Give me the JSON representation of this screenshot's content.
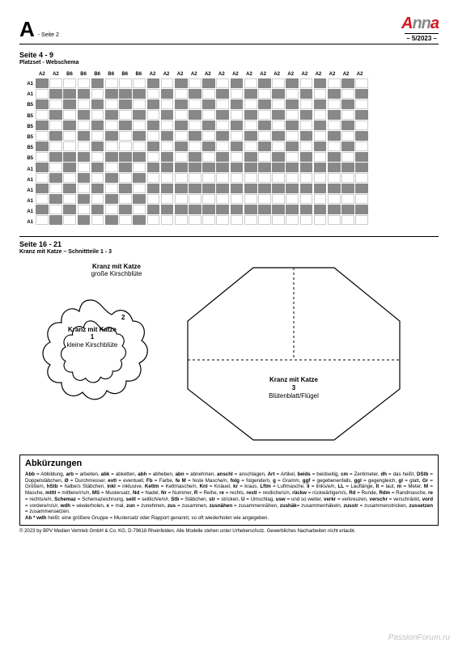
{
  "header": {
    "letter": "A",
    "seite": "- Seite 2",
    "logo_a": "A",
    "logo_nn": "nn",
    "logo_a2": "a",
    "issue": "– 5/2023 –"
  },
  "sec1": {
    "title": "Seite 4 - 9",
    "sub": "Platzset - Webschema"
  },
  "weave": {
    "cols": [
      "A2",
      "A2",
      "B6",
      "B6",
      "B6",
      "B6",
      "B6",
      "B6",
      "A2",
      "A2",
      "A2",
      "A2",
      "A2",
      "A2",
      "A2",
      "A2",
      "A2",
      "A2",
      "A2",
      "A2",
      "A2",
      "A2",
      "A2",
      "A2"
    ],
    "rows": [
      "A1",
      "A1",
      "B5",
      "B5",
      "B5",
      "B5",
      "B5",
      "B5",
      "A1",
      "A1",
      "A1",
      "A1",
      "A1",
      "A1"
    ],
    "grid": [
      "dwwwdwwwdwdwdwdwdwdwdwdw",
      "wdddwdddwdwdwdwdwdwdwdwd",
      "dwdwdwdwdwdwdwdwdwdwdwdw",
      "wdwdwdwdwdwdwdwdwdwdwdwd",
      "dwdwdwdwdwdwdwdwdwdwdwdw",
      "wdwdwdwdwdwdwdwdwdwdwdwd",
      "dwwwdwwwdwdwdwdwdwdwdwdw",
      "wdddwdddwdwdwdwdwdwdwdwd",
      "dwdwdwdwdddddddddddddddd",
      "wdwdwdwdwwwwwwwwwwwwwwww",
      "dwdwdwdwdddddddddddddddd",
      "wdwdwdwdwwwwwwwwwwwwwwww",
      "dwdwdwdwdddddddddddddddd",
      "wdwdwdwdwwwwwwwwwwwwwwww"
    ]
  },
  "sec2": {
    "title": "Seite 16 - 21",
    "sub": "Kranz mit Katze – Schnittteile 1 - 3"
  },
  "flower": {
    "outer_title": "Kranz mit Katze",
    "outer_sub": "große Kirschblüte",
    "outer_num": "2",
    "inner_title": "Kranz mit Katze",
    "inner_num": "1",
    "inner_sub": "kleine Kirschblüte"
  },
  "oct": {
    "title": "Kranz mit Katze",
    "num": "3",
    "sub": "Blütenblatt/Flügel"
  },
  "abk": {
    "title": "Abkürzungen",
    "body_parts": [
      {
        "b": "Abb",
        "t": " = Abbildung, "
      },
      {
        "b": "arb",
        "t": " = arbeiten, "
      },
      {
        "b": "abk",
        "t": " = abketten, "
      },
      {
        "b": "abh",
        "t": " = abheben, "
      },
      {
        "b": "abn",
        "t": " = abnehmen, "
      },
      {
        "b": "anschl",
        "t": " = anschlagen, "
      },
      {
        "b": "Art",
        "t": " = Artikel, "
      },
      {
        "b": "beids",
        "t": " = beidseitig, "
      },
      {
        "b": "cm",
        "t": " = Zentimeter, "
      },
      {
        "b": "dh",
        "t": " = das heißt, "
      },
      {
        "b": "DStb",
        "t": " = Doppelstäbchen, "
      },
      {
        "b": "Ø",
        "t": " = Durchmesser, "
      },
      {
        "b": "evtl",
        "t": " = eventuell, "
      },
      {
        "b": "Fb",
        "t": " = Farbe, "
      },
      {
        "b": "fe M",
        "t": " = feste Masche/n, "
      },
      {
        "b": "folg",
        "t": " = folgende/n, "
      },
      {
        "b": "g",
        "t": " = Gramm, "
      },
      {
        "b": "ggf",
        "t": " = gegebenenfalls, "
      },
      {
        "b": "ggl",
        "t": " = gegengleich, "
      },
      {
        "b": "gl",
        "t": " = glatt, "
      },
      {
        "b": "Gr",
        "t": " = Größe/n, "
      },
      {
        "b": "hStb",
        "t": " = halbe/s Stäbchen, "
      },
      {
        "b": "inkl",
        "t": " = inklusive, "
      },
      {
        "b": "Kettm",
        "t": " = Kettmasche/n, "
      },
      {
        "b": "Knl",
        "t": " = Knäuel, "
      },
      {
        "b": "kr",
        "t": " = kraus, "
      },
      {
        "b": "Lftm",
        "t": " = Luftmasche, "
      },
      {
        "b": "li",
        "t": " = links/e/n, "
      },
      {
        "b": "LL",
        "t": " = Lauflänge, "
      },
      {
        "b": "lt",
        "t": " = laut, "
      },
      {
        "b": "m",
        "t": " = Meter, "
      },
      {
        "b": "M",
        "t": " = Masche, "
      },
      {
        "b": "mittl",
        "t": " = mittlere/r/s/n, "
      },
      {
        "b": "MS",
        "t": " = Mustersatz, "
      },
      {
        "b": "Nd",
        "t": " = Nadel, "
      },
      {
        "b": "Nr",
        "t": " = Nummer, "
      },
      {
        "b": "R",
        "t": " = Reihe, "
      },
      {
        "b": "re",
        "t": " = rechts, "
      },
      {
        "b": "restl",
        "t": " = restliche/s/n, "
      },
      {
        "b": "rückw",
        "t": " = rückwärtige/n/s, "
      },
      {
        "b": "Rd",
        "t": " = Runde, "
      },
      {
        "b": "Rdm",
        "t": " = Randmasche, "
      },
      {
        "b": "re",
        "t": " = rechts/e/n, "
      },
      {
        "b": "Schemaz",
        "t": " = Schemazeichnung, "
      },
      {
        "b": "seitl",
        "t": " = seitlich/e/n/r, "
      },
      {
        "b": "Stb",
        "t": " = Stäbchen, "
      },
      {
        "b": "str",
        "t": " = stricken, "
      },
      {
        "b": "U",
        "t": " = Umschlag, "
      },
      {
        "b": "usw",
        "t": " = und so weiter, "
      },
      {
        "b": "verkr",
        "t": " = verkreuzen, "
      },
      {
        "b": "verschr",
        "t": " = verschränkt, "
      },
      {
        "b": "vord",
        "t": " = vordere/n/s/r, "
      },
      {
        "b": "wdh",
        "t": " = wiederholen, "
      },
      {
        "b": "x",
        "t": " = mal, "
      },
      {
        "b": "zun",
        "t": " = zunehmen, "
      },
      {
        "b": "zus",
        "t": " = zusammen, "
      },
      {
        "b": "zusnähen",
        "t": " = zusammennähen, "
      },
      {
        "b": "zushäk",
        "t": "= zusammenhäkeln, "
      },
      {
        "b": "zusstr",
        "t": " = zusammenstricken, "
      },
      {
        "b": "zussetzen",
        "t": " = zusammensetzen."
      }
    ],
    "note_b": "Ab * wdh",
    "note_t": " heißt: eine größere Gruppe = Mustersatz oder Rapport genannt, so oft wiederholen wie angegeben."
  },
  "footer": "© 2023 by BPV Medien Vertrieb GmbH & Co. KG, D-79618 Rheinfelden. Alle Modelle stehen unter Urheberschutz. Gewerbliches Nacharbeiten nicht erlaubt.",
  "watermark": "PassionForum.ru"
}
